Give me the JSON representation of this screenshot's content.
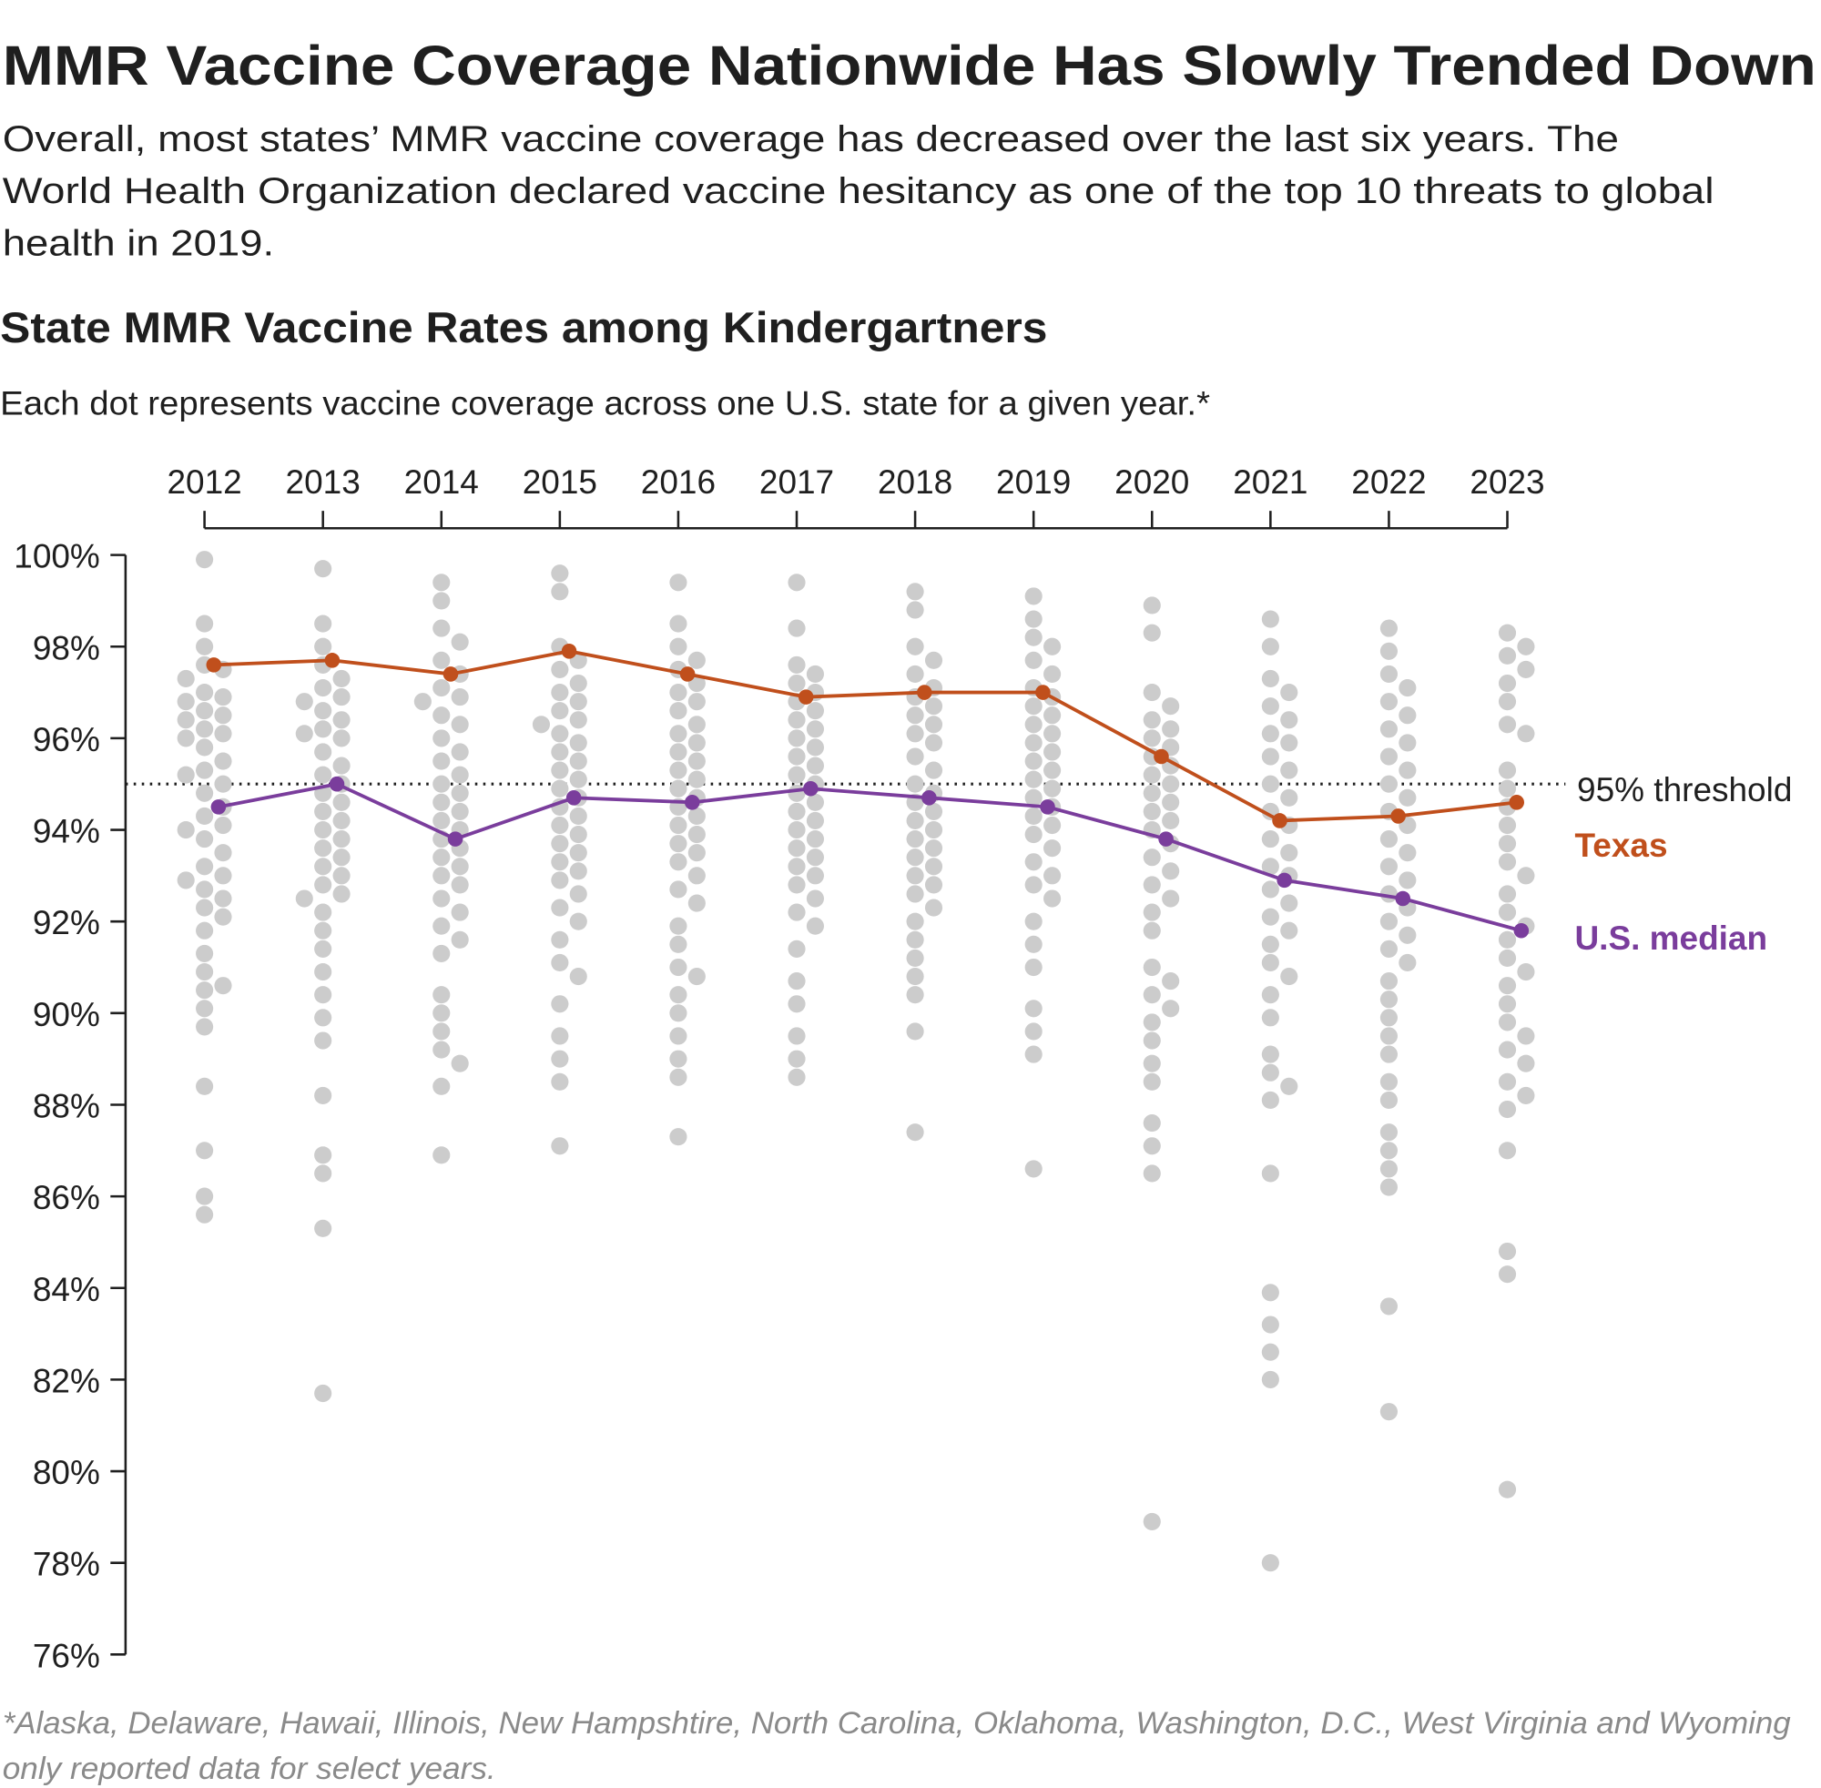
{
  "header": {
    "title": "MMR Vaccine Coverage Nationwide Has Slowly Trended Down",
    "subtitle_lines": [
      "Overall, most states’ MMR vaccine coverage has decreased over the last six years. The",
      "World Health Organization declared vaccine hesitancy as one of the top 10 threats to global",
      "health in 2019."
    ]
  },
  "footnote_lines": [
    "*Alaska, Delaware, Hawaii, Illinois, New Hampshtire, North Carolina, Oklahoma, Washington, D.C., West Virginia and Wyoming",
    "only reported data for select years."
  ],
  "chart_data": {
    "type": "scatter",
    "title": "State MMR Vaccine Rates among Kindergartners",
    "subtitle": "Each dot represents vaccine coverage across one U.S. state for a given year.*",
    "x_tick_labels": [
      "2012",
      "2013",
      "2014",
      "2015",
      "2016",
      "2017",
      "2018",
      "2019",
      "2020",
      "2021",
      "2022",
      "2023"
    ],
    "x_axis_position": "top",
    "y_tick_labels": [
      "100%",
      "98%",
      "96%",
      "94%",
      "92%",
      "90%",
      "88%",
      "86%",
      "84%",
      "82%",
      "80%",
      "78%",
      "76%"
    ],
    "ylim": [
      76,
      100
    ],
    "grid": false,
    "threshold": {
      "value": 95,
      "label": "95% threshold"
    },
    "colors": {
      "dots": "#cccccc",
      "texas": "#c04f1c",
      "median": "#7a3d9c",
      "threshold": "#1f1f1f"
    },
    "series": [
      {
        "name": "Texas",
        "type": "line",
        "values": [
          97.6,
          97.7,
          97.4,
          97.9,
          97.4,
          96.9,
          97.0,
          97.0,
          95.6,
          94.2,
          94.3,
          94.6
        ]
      },
      {
        "name": "U.S. median",
        "type": "line",
        "values": [
          94.5,
          95.0,
          93.8,
          94.7,
          94.6,
          94.9,
          94.7,
          94.5,
          93.8,
          92.9,
          92.5,
          91.8
        ]
      }
    ],
    "state_dots": [
      [
        99.9,
        98.5,
        98.0,
        97.6,
        97.5,
        97.3,
        97.0,
        96.9,
        96.8,
        96.6,
        96.5,
        96.4,
        96.2,
        96.1,
        96.0,
        95.8,
        95.5,
        95.3,
        95.2,
        95.0,
        94.8,
        94.5,
        94.3,
        94.1,
        94.0,
        93.8,
        93.5,
        93.2,
        93.0,
        92.9,
        92.7,
        92.5,
        92.3,
        92.1,
        91.8,
        91.3,
        90.9,
        90.6,
        90.5,
        90.1,
        89.7,
        88.4,
        87.0,
        86.0,
        85.6
      ],
      [
        99.7,
        98.5,
        98.0,
        97.6,
        97.3,
        97.1,
        96.9,
        96.8,
        96.6,
        96.4,
        96.2,
        96.1,
        96.0,
        95.7,
        95.4,
        95.2,
        95.0,
        94.8,
        94.6,
        94.4,
        94.2,
        94.0,
        93.8,
        93.6,
        93.4,
        93.2,
        93.0,
        92.8,
        92.6,
        92.5,
        92.2,
        91.8,
        91.4,
        90.9,
        90.4,
        89.9,
        89.4,
        88.2,
        86.9,
        86.5,
        85.3,
        81.7
      ],
      [
        99.4,
        99.0,
        98.4,
        98.1,
        97.7,
        97.4,
        97.1,
        96.9,
        96.8,
        96.5,
        96.3,
        96.0,
        95.7,
        95.5,
        95.2,
        95.0,
        94.8,
        94.6,
        94.4,
        94.2,
        94.0,
        93.8,
        93.6,
        93.4,
        93.2,
        93.0,
        92.8,
        92.5,
        92.2,
        91.9,
        91.6,
        91.3,
        90.4,
        90.0,
        89.6,
        89.2,
        88.9,
        88.4,
        86.9
      ],
      [
        99.6,
        99.2,
        98.0,
        97.7,
        97.5,
        97.2,
        97.0,
        96.8,
        96.6,
        96.4,
        96.3,
        96.1,
        95.9,
        95.7,
        95.5,
        95.3,
        95.1,
        94.9,
        94.7,
        94.5,
        94.3,
        94.1,
        93.9,
        93.7,
        93.5,
        93.3,
        93.1,
        92.9,
        92.6,
        92.3,
        92.0,
        91.6,
        91.1,
        90.8,
        90.2,
        89.5,
        89.0,
        88.5,
        87.1
      ],
      [
        99.4,
        98.5,
        98.0,
        97.7,
        97.5,
        97.2,
        97.0,
        96.8,
        96.6,
        96.3,
        96.1,
        95.9,
        95.7,
        95.5,
        95.3,
        95.1,
        94.9,
        94.7,
        94.5,
        94.3,
        94.1,
        93.9,
        93.7,
        93.5,
        93.3,
        93.0,
        92.7,
        92.4,
        91.9,
        91.5,
        91.0,
        90.8,
        90.4,
        90.0,
        89.5,
        89.0,
        88.6,
        87.3
      ],
      [
        99.4,
        98.4,
        97.6,
        97.4,
        97.2,
        97.0,
        96.8,
        96.6,
        96.4,
        96.2,
        96.0,
        95.8,
        95.6,
        95.4,
        95.2,
        95.0,
        94.8,
        94.6,
        94.4,
        94.2,
        94.0,
        93.8,
        93.6,
        93.4,
        93.2,
        93.0,
        92.8,
        92.5,
        92.2,
        91.9,
        91.4,
        90.7,
        90.2,
        89.5,
        89.0,
        88.6
      ],
      [
        99.2,
        98.8,
        98.0,
        97.7,
        97.4,
        97.1,
        96.9,
        96.7,
        96.5,
        96.3,
        96.1,
        95.9,
        95.6,
        95.3,
        95.0,
        94.8,
        94.6,
        94.4,
        94.2,
        94.0,
        93.8,
        93.6,
        93.4,
        93.2,
        93.0,
        92.8,
        92.6,
        92.3,
        92.0,
        91.6,
        91.2,
        90.8,
        90.4,
        89.6,
        87.4
      ],
      [
        99.1,
        98.6,
        98.2,
        98.0,
        97.7,
        97.4,
        97.1,
        96.9,
        96.7,
        96.5,
        96.3,
        96.1,
        95.9,
        95.7,
        95.5,
        95.3,
        95.1,
        94.9,
        94.7,
        94.5,
        94.3,
        94.1,
        93.9,
        93.6,
        93.3,
        93.0,
        92.8,
        92.5,
        92.0,
        91.5,
        91.0,
        90.1,
        89.6,
        89.1,
        86.6
      ],
      [
        98.9,
        98.3,
        97.0,
        96.7,
        96.4,
        96.2,
        96.0,
        95.8,
        95.6,
        95.4,
        95.2,
        95.0,
        94.8,
        94.6,
        94.4,
        94.2,
        94.0,
        93.7,
        93.4,
        93.1,
        92.8,
        92.5,
        92.2,
        91.8,
        91.0,
        90.7,
        90.4,
        90.1,
        89.8,
        89.4,
        88.9,
        88.5,
        87.6,
        87.1,
        86.5,
        78.9
      ],
      [
        98.6,
        98.0,
        97.3,
        97.0,
        96.7,
        96.4,
        96.1,
        95.9,
        95.6,
        95.3,
        95.0,
        94.7,
        94.4,
        94.1,
        93.8,
        93.5,
        93.2,
        93.0,
        92.7,
        92.4,
        92.1,
        91.8,
        91.5,
        91.1,
        90.8,
        90.4,
        89.9,
        89.1,
        88.7,
        88.1,
        88.4,
        86.5,
        83.9,
        83.2,
        82.6,
        82.0,
        78.0
      ],
      [
        98.4,
        97.9,
        97.4,
        97.1,
        96.8,
        96.5,
        96.2,
        95.9,
        95.6,
        95.3,
        95.0,
        94.7,
        94.4,
        94.1,
        93.8,
        93.5,
        93.2,
        92.9,
        92.6,
        92.3,
        92.0,
        91.7,
        91.4,
        91.1,
        90.7,
        90.3,
        89.9,
        89.5,
        89.1,
        88.5,
        88.1,
        87.4,
        87.0,
        86.6,
        86.2,
        83.6,
        81.3
      ],
      [
        98.3,
        98.0,
        97.8,
        97.5,
        97.2,
        96.8,
        96.3,
        96.1,
        95.3,
        94.9,
        94.5,
        94.1,
        93.7,
        93.3,
        93.0,
        92.6,
        92.2,
        91.9,
        91.6,
        91.2,
        90.9,
        90.6,
        90.2,
        89.8,
        89.5,
        89.2,
        88.9,
        88.5,
        88.2,
        87.9,
        87.0,
        84.8,
        84.3,
        79.6
      ]
    ]
  }
}
